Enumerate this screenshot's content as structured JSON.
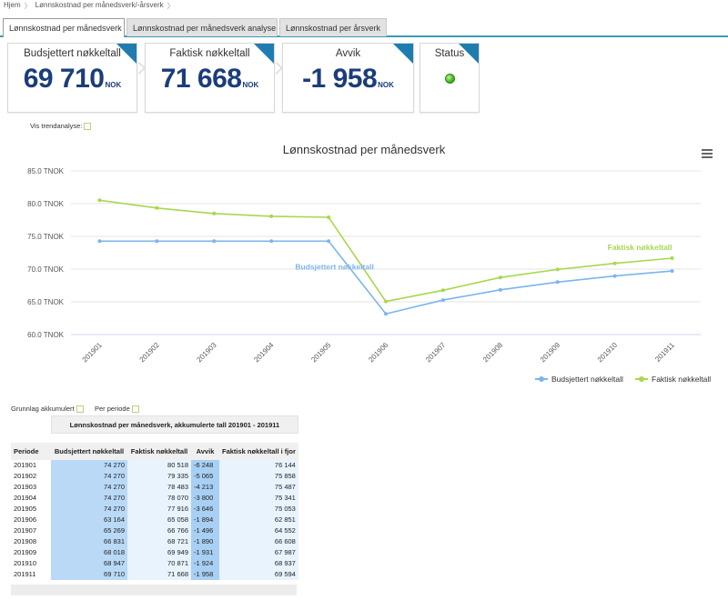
{
  "breadcrumb": [
    "Hjem",
    "Lønnskostnad per månedsverk/-årsverk"
  ],
  "tabs": [
    {
      "label": "Lønnskostnad per månedsverk",
      "active": true
    },
    {
      "label": "Lønnskostnad per månedsverk analyse",
      "active": false
    },
    {
      "label": "Lønnskostnad per årsverk",
      "active": false
    }
  ],
  "kpis": [
    {
      "title": "Budsjettert nøkkeltall",
      "value": "69 710",
      "unit": "NOK"
    },
    {
      "title": "Faktisk nøkkeltall",
      "value": "71 668",
      "unit": "NOK"
    },
    {
      "title": "Avvik",
      "value": "-1 958",
      "unit": "NOK"
    },
    {
      "title": "Status",
      "status_color": "#3fb31b"
    }
  ],
  "trend_toggle_label": "Vis trendanalyse:",
  "chart_data": {
    "type": "line",
    "title": "Lønnskostnad per månedsverk",
    "x": [
      "201901",
      "201902",
      "201903",
      "201904",
      "201905",
      "201906",
      "201907",
      "201908",
      "201909",
      "201910",
      "201911"
    ],
    "y_ticks": [
      "60.0 TNOK",
      "65.0 TNOK",
      "70.0 TNOK",
      "75.0 TNOK",
      "80.0 TNOK",
      "85.0 TNOK"
    ],
    "ylim": [
      60,
      85
    ],
    "grid": true,
    "legend_position": "bottom-right",
    "series": [
      {
        "name": "Budsjettert nøkkeltall",
        "color": "#7cb5ec",
        "values": [
          74.27,
          74.27,
          74.27,
          74.27,
          74.27,
          63.164,
          65.269,
          66.831,
          68.018,
          68.947,
          69.71
        ]
      },
      {
        "name": "Faktisk nøkkeltall",
        "color": "#a6d84f",
        "values": [
          80.518,
          79.335,
          78.483,
          78.07,
          77.916,
          65.058,
          66.766,
          68.721,
          69.949,
          70.871,
          71.668
        ]
      }
    ]
  },
  "options": {
    "grunnlag_label": "Grunnlag akkumulert",
    "per_periode_label": "Per periode"
  },
  "table": {
    "caption": "Lønnskostnad per månedsverk, akkumulerte tall 201901 - 201911",
    "headers": [
      "Periode",
      "Budsjettert nøkkeltall",
      "Faktisk nøkkeltall",
      "Avvik",
      "Faktisk nøkkeltall i fjor"
    ],
    "rows": [
      [
        "201901",
        "74 270",
        "80 518",
        "-6 248",
        "76 144"
      ],
      [
        "201902",
        "74 270",
        "79 335",
        "-5 065",
        "75 858"
      ],
      [
        "201903",
        "74 270",
        "78 483",
        "-4 213",
        "75 487"
      ],
      [
        "201904",
        "74 270",
        "78 070",
        "-3 800",
        "75 341"
      ],
      [
        "201905",
        "74 270",
        "77 916",
        "-3 646",
        "75 053"
      ],
      [
        "201906",
        "63 164",
        "65 058",
        "-1 894",
        "62 851"
      ],
      [
        "201907",
        "65 269",
        "66 766",
        "-1 496",
        "64 552"
      ],
      [
        "201908",
        "66 831",
        "68 721",
        "-1 890",
        "66 608"
      ],
      [
        "201909",
        "68 018",
        "69 949",
        "-1 931",
        "67 987"
      ],
      [
        "201910",
        "68 947",
        "70 871",
        "-1 924",
        "68 937"
      ],
      [
        "201911",
        "69 710",
        "71 668",
        "-1 958",
        "69 594"
      ]
    ]
  }
}
